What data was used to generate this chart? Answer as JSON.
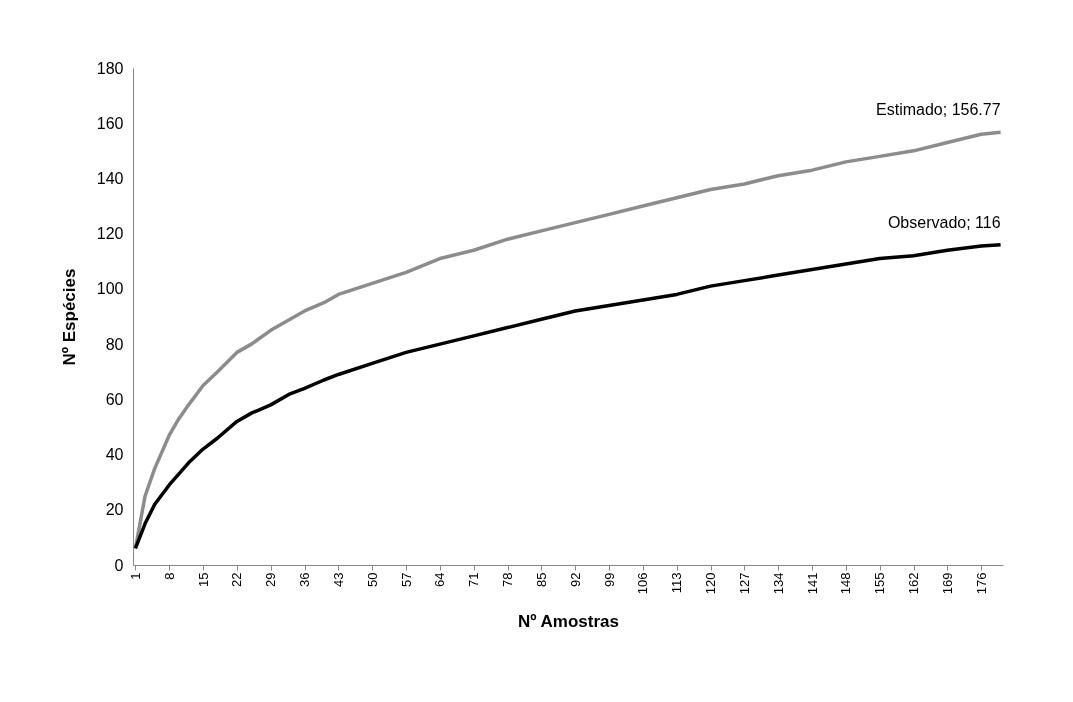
{
  "chart_data": {
    "type": "line",
    "xlabel": "Nº Amostras",
    "ylabel": "Nº Espécies",
    "xlim": [
      0.5,
      180.5
    ],
    "xticks": [
      1,
      8,
      15,
      22,
      29,
      36,
      43,
      50,
      57,
      64,
      71,
      78,
      85,
      92,
      99,
      106,
      113,
      120,
      127,
      134,
      141,
      148,
      155,
      162,
      169,
      176
    ],
    "ylim": [
      0,
      180
    ],
    "yticks": [
      0,
      20,
      40,
      60,
      80,
      100,
      120,
      140,
      160,
      180
    ],
    "grid": false,
    "marker": "none",
    "line_style": "solid",
    "series": [
      {
        "color": "#8c8c8c",
        "x": [
          1,
          3,
          5,
          8,
          10,
          12,
          15,
          18,
          22,
          25,
          29,
          33,
          36,
          40,
          43,
          50,
          57,
          64,
          71,
          78,
          85,
          92,
          99,
          106,
          113,
          120,
          127,
          134,
          141,
          148,
          155,
          162,
          169,
          176,
          180
        ],
        "values": [
          6,
          25,
          35,
          47,
          53,
          58,
          65,
          70,
          77,
          80,
          85,
          89,
          92,
          95,
          98,
          102,
          106,
          111,
          114,
          118,
          121,
          124,
          127,
          130,
          133,
          136,
          138,
          141,
          143,
          146,
          148,
          150,
          153,
          156,
          156.77
        ]
      },
      {
        "color": "#000000",
        "x": [
          1,
          3,
          5,
          8,
          10,
          12,
          15,
          18,
          22,
          25,
          29,
          33,
          36,
          40,
          43,
          50,
          57,
          64,
          71,
          78,
          85,
          92,
          99,
          106,
          113,
          120,
          127,
          134,
          141,
          148,
          155,
          162,
          169,
          176,
          180
        ],
        "values": [
          6,
          15,
          22,
          29,
          33,
          37,
          42,
          46,
          52,
          55,
          58,
          62,
          64,
          67,
          69,
          73,
          77,
          80,
          83,
          86,
          89,
          92,
          94,
          96,
          98,
          101,
          103,
          105,
          107,
          109,
          111,
          112,
          114,
          115.5,
          116
        ]
      }
    ],
    "annotations": [
      {
        "text": "Estimado; 156.77",
        "x": 180,
        "y": 156.77
      },
      {
        "text": "Observado; 116",
        "x": 180,
        "y": 116
      }
    ]
  }
}
